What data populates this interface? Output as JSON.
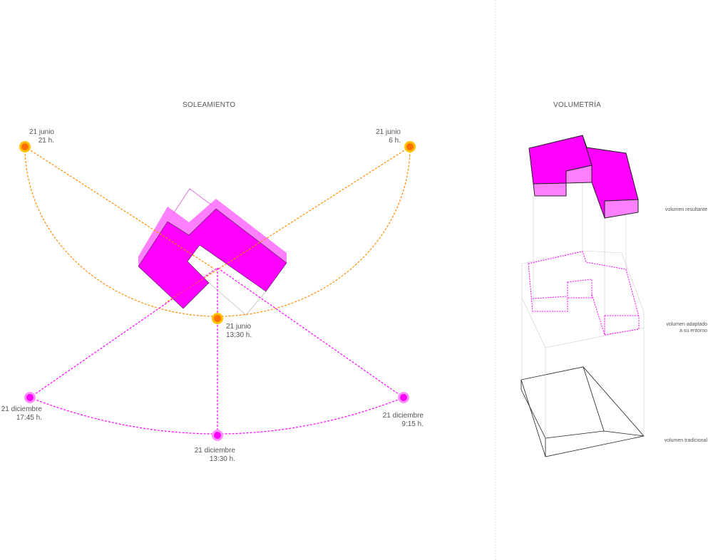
{
  "solar": {
    "title": "SOLEAMIENTO",
    "points": [
      {
        "date": "21 junio",
        "time": "21 h."
      },
      {
        "date": "21 junio",
        "time": "6 h."
      },
      {
        "date": "21 junio",
        "time": "13:30 h."
      },
      {
        "date": "21 diciembre",
        "time": "17:45 h."
      },
      {
        "date": "21 diciembre",
        "time": "9:15 h."
      },
      {
        "date": "21 diciembre",
        "time": "13:30 h."
      }
    ]
  },
  "volumetry": {
    "title": "VOLUMETRÍA",
    "labels": {
      "resultante": "volumen resultante",
      "adaptado_1": "volumen adaptado",
      "adaptado_2": "a su entorno",
      "tradicional": "volumen tradicional"
    }
  },
  "colors": {
    "summer": "#ff8c00",
    "winter": "#ff00ff",
    "building": "#ff00ff",
    "building_light": "#ff80ff"
  }
}
